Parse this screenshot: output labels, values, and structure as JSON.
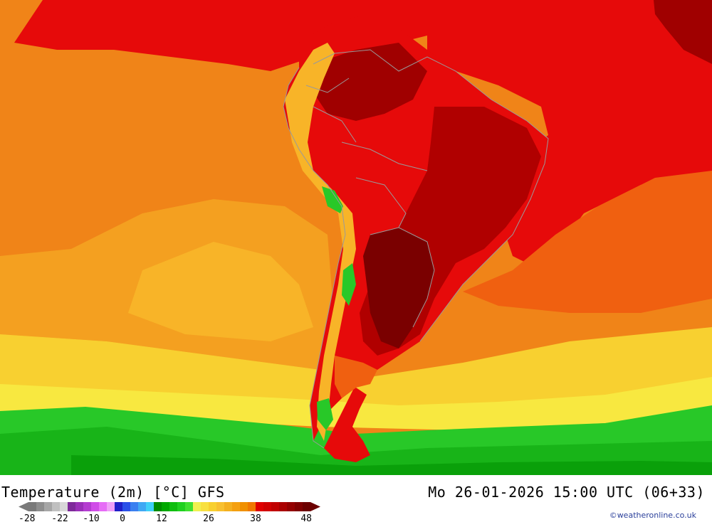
{
  "title": {
    "left": "Temperature (2m) [°C] GFS",
    "right": "Mo 26-01-2026 15:00 UTC (06+33)"
  },
  "credit": "©weatheronline.co.uk",
  "legend": {
    "colors": [
      "#7a7a7a",
      "#8e8e8e",
      "#a6a6a6",
      "#c0c0c0",
      "#d8d8d8",
      "#7e2a9a",
      "#9a30b8",
      "#b43cd0",
      "#d04ce8",
      "#e66cf6",
      "#f0a0f8",
      "#2020c8",
      "#2a50e8",
      "#3a80f0",
      "#40a8f4",
      "#40d0f8",
      "#008c00",
      "#00a800",
      "#10be10",
      "#20d020",
      "#40e030",
      "#f0f050",
      "#f8e040",
      "#f8d030",
      "#f8c030",
      "#f4b020",
      "#f4a010",
      "#f09000",
      "#f07800",
      "#e00000",
      "#d00000",
      "#c00000",
      "#aa0000",
      "#940000",
      "#800000",
      "#6c0000"
    ],
    "ticks": [
      {
        "label": "-28",
        "index": 0
      },
      {
        "label": "-22",
        "index": 4
      },
      {
        "label": "-10",
        "index": 8
      },
      {
        "label": "0",
        "index": 12
      },
      {
        "label": "12",
        "index": 17
      },
      {
        "label": "26",
        "index": 23
      },
      {
        "label": "38",
        "index": 29
      },
      {
        "label": "48",
        "index": 34
      }
    ]
  },
  "map": {
    "colors": {
      "cold_green": "#18b418",
      "green": "#28c828",
      "light_green": "#50d830",
      "yellow": "#f8e840",
      "yellow_orange": "#f8d030",
      "orange_light": "#f8b428",
      "orange": "#f4a020",
      "orange_dark": "#f08418",
      "red_orange": "#f06010",
      "red": "#e60a0a",
      "dark_red": "#c00000",
      "very_dark_red": "#8c0000",
      "darkest_red": "#6a0000",
      "border": "#9a9a9a"
    }
  }
}
